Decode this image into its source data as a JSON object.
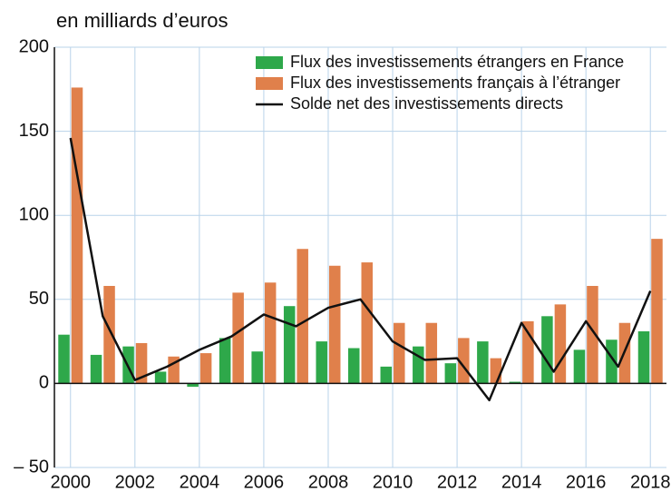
{
  "chart_data": {
    "type": "bar",
    "subtitle": "en milliards d’euros",
    "categories": [
      "2000",
      null,
      "2002",
      null,
      "2004",
      null,
      "2006",
      null,
      "2008",
      null,
      "2010",
      null,
      "2012",
      null,
      "2014",
      null,
      "2016",
      null,
      "2018"
    ],
    "series": [
      {
        "name": "Flux des investissements étrangers en France",
        "color": "#2ea84a",
        "type": "bar",
        "values": [
          29,
          17,
          22,
          7,
          -2,
          27,
          19,
          46,
          25,
          21,
          10,
          22,
          12,
          25,
          1,
          40,
          20,
          26,
          31
        ]
      },
      {
        "name": "Flux des investissements français à l’étranger",
        "color": "#e0804b",
        "type": "bar",
        "values": [
          176,
          58,
          24,
          16,
          18,
          54,
          60,
          80,
          70,
          72,
          36,
          36,
          27,
          15,
          37,
          47,
          58,
          36,
          86
        ]
      },
      {
        "name": "Solde net des investissements directs",
        "color": "#111111",
        "type": "line",
        "values": [
          146,
          40,
          2,
          10,
          20,
          28,
          41,
          34,
          45,
          50,
          25,
          14,
          15,
          -10,
          36,
          7,
          37,
          10,
          55
        ]
      }
    ],
    "ylim": [
      -50,
      200
    ],
    "yticks": [
      {
        "value": -50,
        "label": "– 50"
      },
      0,
      50,
      100,
      150,
      200
    ],
    "grid": true,
    "legend": "top-right"
  }
}
